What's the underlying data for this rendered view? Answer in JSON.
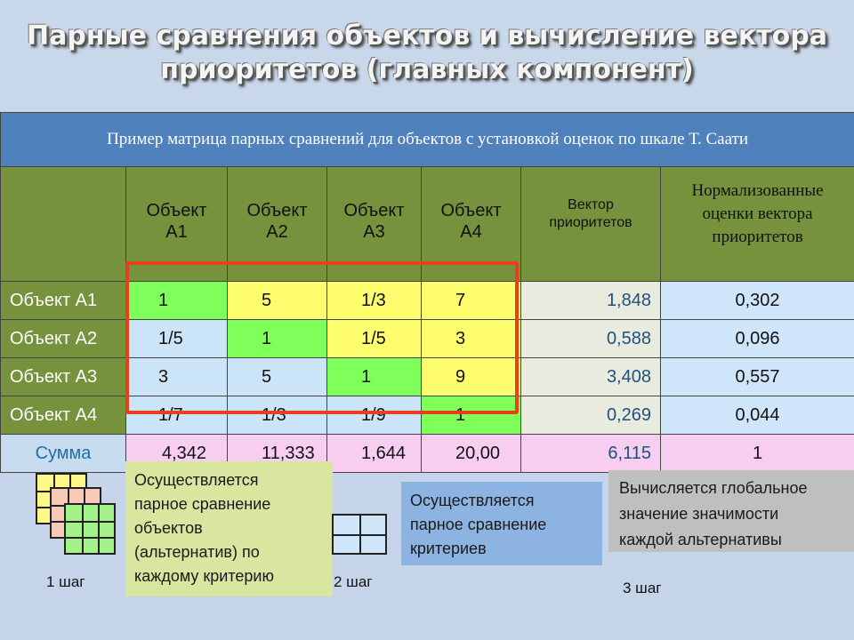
{
  "title": {
    "line1": "Парные сравнения объектов и вычисление вектора",
    "line2": "приоритетов (главных компонент)"
  },
  "table": {
    "caption": "Пример матрица парных сравнений для объектов с установкой оценок по шкале Т. Саати",
    "headers": {
      "a1_line1": "Объект",
      "a1_line2": "А1",
      "a2_line1": "Объект",
      "a2_line2": "А2",
      "a3_line1": "Объект",
      "a3_line2": "А3",
      "a4_line1": "Объект",
      "a4_line2": "А4",
      "vector_line1": "Вектор",
      "vector_line2": "приоритетов",
      "norm_line1": "Нормализованные",
      "norm_line2": "оценки вектора",
      "norm_line3": "приоритетов"
    },
    "rows": [
      {
        "label": "Объект А1",
        "cells": [
          "1",
          "5",
          "1/3",
          "7"
        ],
        "vector": "1,848",
        "norm": "0,302"
      },
      {
        "label": "Объект А2",
        "cells": [
          "1/5",
          "1",
          "1/5",
          "3"
        ],
        "vector": "0,588",
        "norm": "0,096"
      },
      {
        "label": "Объект А3",
        "cells": [
          "3",
          "5",
          "1",
          "9"
        ],
        "vector": "3,408",
        "norm": "0,557"
      },
      {
        "label": "Объект А4",
        "cells": [
          "1/7",
          "1/3",
          "1/9",
          "1"
        ],
        "vector": "0,269",
        "norm": "0,044"
      }
    ],
    "sum": {
      "label": "Сумма",
      "cells": [
        "4,342",
        "11,333",
        "1,644",
        "20,00"
      ],
      "vector": "6,115",
      "norm": "1"
    }
  },
  "steps": {
    "step1_label": "1 шаг",
    "step2_label": "2 шаг",
    "step3_label": "3 шаг",
    "box1": [
      "Осуществляется",
      "парное сравнение",
      "объектов",
      "(альтернатив) по",
      "каждому критерию"
    ],
    "box2": [
      "Осуществляется",
      "парное сравнение",
      "критериев"
    ],
    "box3": [
      "Вычисляется глобальное",
      "значение значимости",
      "каждой альтернативы"
    ]
  },
  "colors": {
    "header_green": "#76923c",
    "caption_blue": "#4f81bd",
    "diagonal_green": "#7fff5a",
    "upper_yellow": "#fdfd6e",
    "highlight_red": "#e8401c"
  }
}
